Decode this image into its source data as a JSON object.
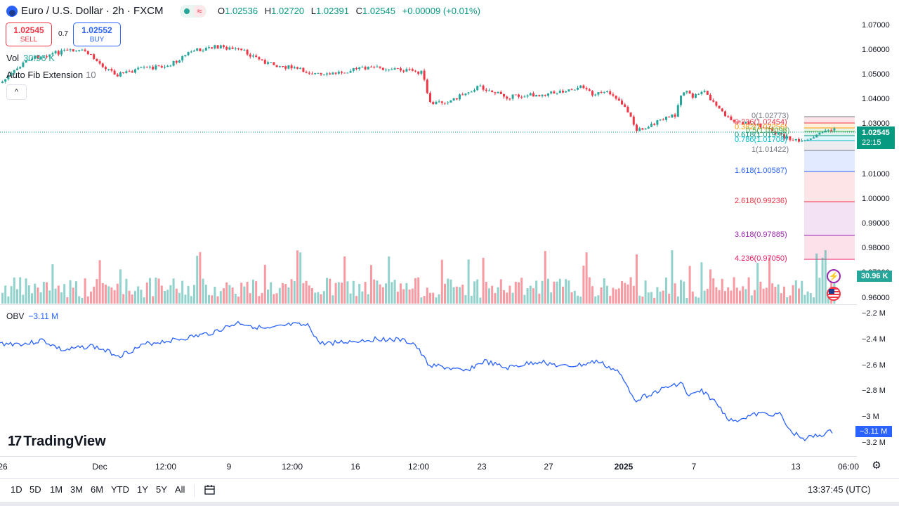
{
  "header": {
    "symbol_title": "Euro / U.S. Dollar · 2h · FXCM",
    "ohlc": {
      "open_label": "O",
      "open": "1.02536",
      "high_label": "H",
      "high": "1.02720",
      "low_label": "L",
      "low": "1.02391",
      "close_label": "C",
      "close": "1.02545",
      "change": "+0.00009 (+0.01%)"
    },
    "status_wave_glyph": "≈"
  },
  "trade": {
    "sell_price": "1.02545",
    "sell_label": "SELL",
    "spread": "0.7",
    "buy_price": "1.02552",
    "buy_label": "BUY"
  },
  "legends": {
    "vol_label": "Vol",
    "vol_value": "30.96 K",
    "fib_label": "Auto Fib Extension",
    "fib_value": "10",
    "collapse_glyph": "^",
    "obv_label": "OBV",
    "obv_value": "−3.11 M"
  },
  "price_axis": {
    "ticks": [
      "1.07000",
      "1.06000",
      "1.05000",
      "1.04000",
      "1.03000",
      "1.01000",
      "1.00000",
      "0.99000",
      "0.98000",
      "0.97000",
      "0.96000"
    ],
    "current_price": "1.02545",
    "countdown": "22:15",
    "volume_badge": "30.96 K"
  },
  "fib_levels": [
    {
      "label": "0(1.02773)",
      "color": "#787b86"
    },
    {
      "label": "0.236(1.02454)",
      "color": "#f23645"
    },
    {
      "label": "0.382(1.02256)",
      "color": "#ff9800"
    },
    {
      "label": "0.5(1.02096)",
      "color": "#4caf50"
    },
    {
      "label": "0.618(1.01936)",
      "color": "#089981"
    },
    {
      "label": "0.786(1.01708)",
      "color": "#00bcd4"
    },
    {
      "label": "1(1.01422)",
      "color": "#787b86"
    },
    {
      "label": "1.618(1.00587)",
      "color": "#2962ff"
    },
    {
      "label": "2.618(0.99236)",
      "color": "#f23645"
    },
    {
      "label": "3.618(0.97885)",
      "color": "#9c27b0"
    },
    {
      "label": "4.236(0.97050)",
      "color": "#e91e63"
    }
  ],
  "obv_axis": {
    "ticks": [
      "−2.2 M",
      "−2.4 M",
      "−2.6 M",
      "−2.8 M",
      "−3 M",
      "−3.2 M"
    ],
    "current": "−3.11 M"
  },
  "watermark": {
    "mark": "17",
    "text": "TradingView"
  },
  "time_axis": {
    "ticks": [
      {
        "label": "26",
        "bold": false
      },
      {
        "label": "Dec",
        "bold": false
      },
      {
        "label": "12:00",
        "bold": false
      },
      {
        "label": "9",
        "bold": false
      },
      {
        "label": "12:00",
        "bold": false
      },
      {
        "label": "16",
        "bold": false
      },
      {
        "label": "12:00",
        "bold": false
      },
      {
        "label": "23",
        "bold": false
      },
      {
        "label": "27",
        "bold": false
      },
      {
        "label": "2025",
        "bold": true
      },
      {
        "label": "7",
        "bold": false
      },
      {
        "label": "13",
        "bold": false
      },
      {
        "label": "06:00",
        "bold": false
      }
    ]
  },
  "bottom_bar": {
    "ranges": [
      "1D",
      "5D",
      "1M",
      "3M",
      "6M",
      "YTD",
      "1Y",
      "5Y",
      "All"
    ],
    "clock": "13:37:45 (UTC)"
  },
  "colors": {
    "up": "#26a69a",
    "down": "#f23645",
    "obv": "#2962ff",
    "badge": "#089981"
  }
}
